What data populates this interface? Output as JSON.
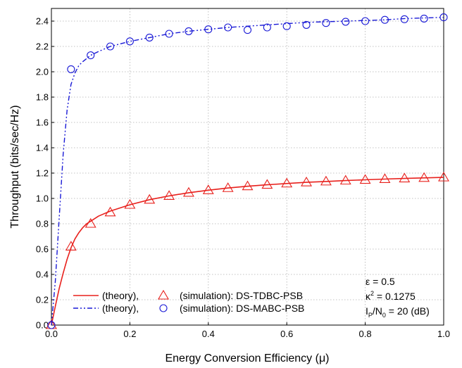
{
  "chart_data": {
    "type": "line",
    "xlabel": "Energy Conversion Efficiency (μ)",
    "ylabel": "Throughput (bits/sec/Hz)",
    "xlim": [
      0,
      1
    ],
    "ylim": [
      0,
      2.5
    ],
    "xticks": [
      "0.0",
      "0.2",
      "0.4",
      "0.6",
      "0.8",
      "1.0"
    ],
    "yticks": [
      "0.0",
      "0.2",
      "0.4",
      "0.6",
      "0.8",
      "1.0",
      "1.2",
      "1.4",
      "1.6",
      "1.8",
      "2.0",
      "2.2",
      "2.4"
    ],
    "grid": true,
    "legend_position": "bottom-left",
    "series": [
      {
        "name": "DS-TDBC-PSB",
        "color": "#e8201c",
        "theory_style": "solid",
        "marker": "triangle",
        "theory": {
          "x": [
            0,
            0.01,
            0.02,
            0.03,
            0.04,
            0.05,
            0.06,
            0.07,
            0.08,
            0.09,
            0.1,
            0.12,
            0.15,
            0.2,
            0.25,
            0.3,
            0.35,
            0.4,
            0.45,
            0.5,
            0.55,
            0.6,
            0.65,
            0.7,
            0.75,
            0.8,
            0.85,
            0.9,
            0.95,
            1.0
          ],
          "y": [
            0,
            0.15,
            0.29,
            0.41,
            0.52,
            0.61,
            0.68,
            0.73,
            0.77,
            0.8,
            0.82,
            0.86,
            0.9,
            0.95,
            0.99,
            1.02,
            1.045,
            1.065,
            1.082,
            1.096,
            1.108,
            1.118,
            1.127,
            1.134,
            1.141,
            1.147,
            1.153,
            1.158,
            1.162,
            1.166
          ]
        },
        "simulation": {
          "x": [
            0,
            0.05,
            0.1,
            0.15,
            0.2,
            0.25,
            0.3,
            0.35,
            0.4,
            0.45,
            0.5,
            0.55,
            0.6,
            0.65,
            0.7,
            0.75,
            0.8,
            0.85,
            0.9,
            0.95,
            1.0
          ],
          "y": [
            0,
            0.62,
            0.8,
            0.89,
            0.95,
            0.99,
            1.02,
            1.045,
            1.065,
            1.082,
            1.096,
            1.108,
            1.118,
            1.127,
            1.134,
            1.141,
            1.147,
            1.153,
            1.158,
            1.162,
            1.166
          ]
        }
      },
      {
        "name": "DS-MABC-PSB",
        "color": "#1919d6",
        "theory_style": "dashdotdot",
        "marker": "circle",
        "theory": {
          "x": [
            0,
            0.01,
            0.02,
            0.03,
            0.04,
            0.05,
            0.06,
            0.07,
            0.08,
            0.1,
            0.12,
            0.15,
            0.2,
            0.25,
            0.3,
            0.35,
            0.4,
            0.45,
            0.5,
            0.55,
            0.6,
            0.65,
            0.7,
            0.75,
            0.8,
            0.85,
            0.9,
            0.95,
            1.0
          ],
          "y": [
            0,
            0.35,
            0.85,
            1.35,
            1.7,
            1.9,
            1.99,
            2.05,
            2.08,
            2.13,
            2.16,
            2.2,
            2.24,
            2.27,
            2.3,
            2.32,
            2.335,
            2.35,
            2.36,
            2.37,
            2.38,
            2.39,
            2.395,
            2.4,
            2.405,
            2.41,
            2.42,
            2.425,
            2.43
          ]
        },
        "simulation": {
          "x": [
            0,
            0.05,
            0.1,
            0.15,
            0.2,
            0.25,
            0.3,
            0.35,
            0.4,
            0.45,
            0.5,
            0.55,
            0.6,
            0.65,
            0.7,
            0.75,
            0.8,
            0.85,
            0.9,
            0.95,
            1.0
          ],
          "y": [
            0,
            2.02,
            2.13,
            2.2,
            2.24,
            2.27,
            2.3,
            2.32,
            2.335,
            2.35,
            2.33,
            2.35,
            2.36,
            2.37,
            2.385,
            2.395,
            2.4,
            2.41,
            2.415,
            2.42,
            2.43
          ]
        }
      }
    ],
    "legend": [
      {
        "theory_label": "(theory),",
        "simulation_label": "(simulation): DS-TDBC-PSB"
      },
      {
        "theory_label": "(theory),",
        "simulation_label": "(simulation): DS-MABC-PSB"
      }
    ],
    "annotations": {
      "epsilon_symbol": "ε",
      "epsilon_value": " = 0.5",
      "kappa_symbol": "κ",
      "kappa_sup": "2",
      "kappa_value": " = 0.1275",
      "ip_symbol": "I",
      "ip_sub": "P",
      "n_symbol": "/N",
      "n_sub": "0",
      "ip_value": " = 20 (dB)"
    }
  }
}
